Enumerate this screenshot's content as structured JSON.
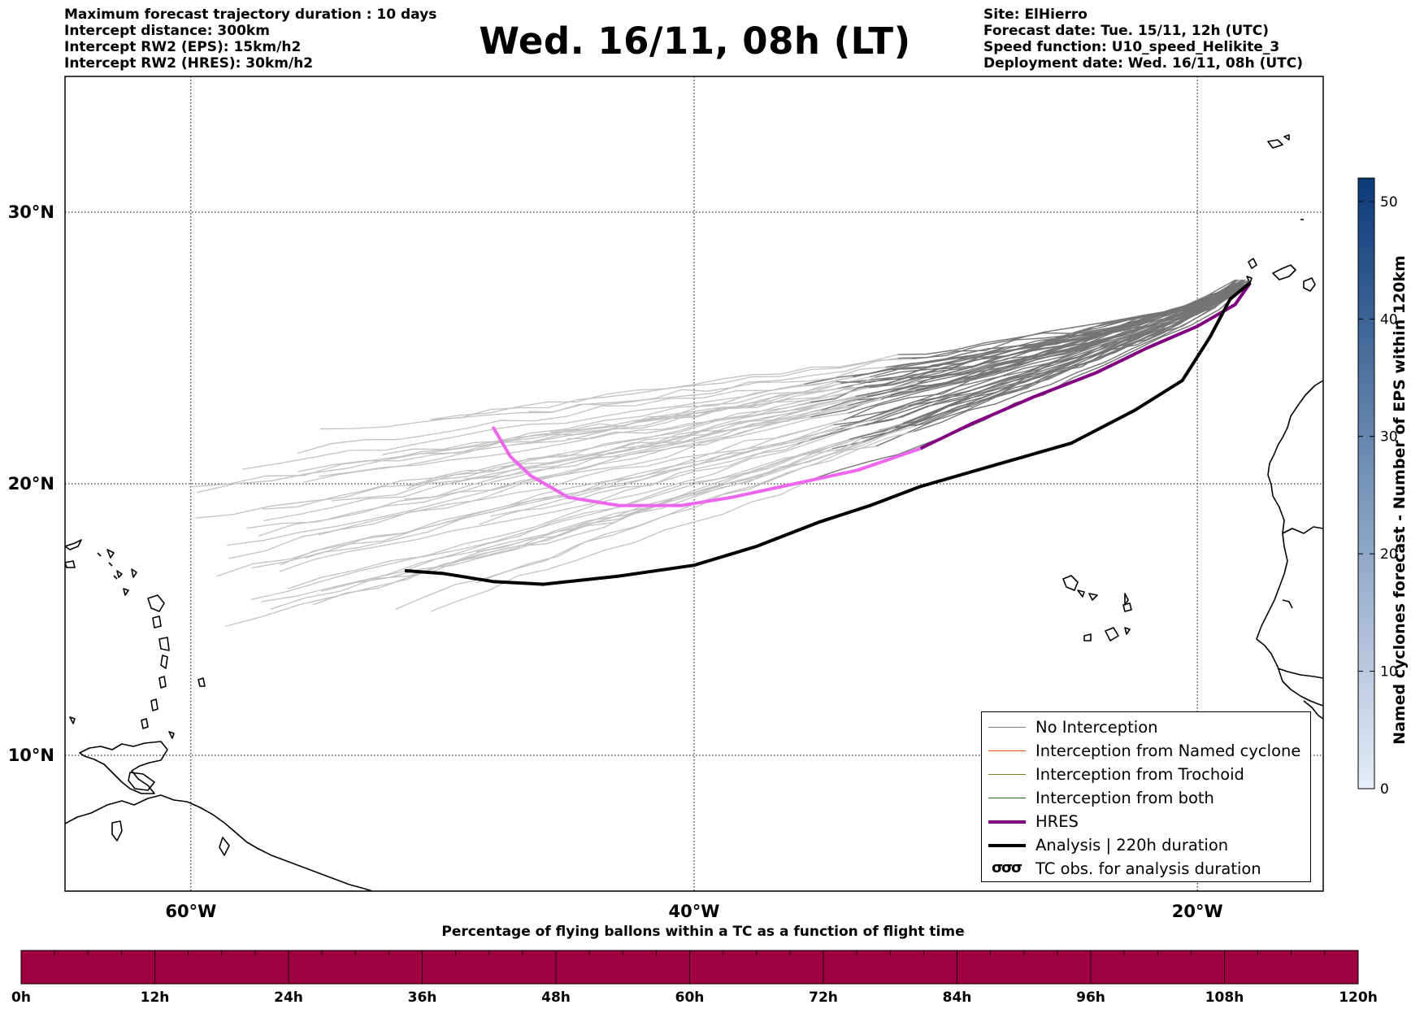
{
  "header": {
    "left_lines": [
      "Maximum forecast trajectory duration : 10 days",
      "Intercept distance: 300km",
      "Intercept RW2 (EPS):  15km/h2",
      "Intercept RW2 (HRES): 30km/h2"
    ],
    "title": "Wed. 16/11, 08h (LT)",
    "right_lines": [
      "Site: ElHierro",
      "Forecast date: Tue. 15/11, 12h (UTC)",
      "Speed function: U10_speed_Helikite_3",
      "Deployment date: Wed. 16/11, 08h (UTC)"
    ]
  },
  "map": {
    "lon_range": [
      -65,
      -15
    ],
    "lat_range": [
      5,
      35
    ],
    "lon_ticks": [
      {
        "value": -60,
        "label": "60°W"
      },
      {
        "value": -40,
        "label": "40°W"
      },
      {
        "value": -20,
        "label": "20°W"
      }
    ],
    "lat_ticks": [
      {
        "value": 30,
        "label": "30°N"
      },
      {
        "value": 20,
        "label": "20°N"
      },
      {
        "value": 10,
        "label": "10°N"
      }
    ],
    "gridlines": "dotted",
    "hres_track": {
      "color_early": "#800080",
      "color_late": "#ee66ee",
      "points": [
        [
          -17.9,
          27.4
        ],
        [
          -18.5,
          26.6
        ],
        [
          -20,
          25.8
        ],
        [
          -22,
          25
        ],
        [
          -24,
          24.1
        ],
        [
          -26.5,
          23.2
        ],
        [
          -29,
          22.2
        ],
        [
          -31,
          21.3
        ],
        [
          -33.5,
          20.5
        ],
        [
          -36,
          20
        ],
        [
          -38.5,
          19.5
        ],
        [
          -40.5,
          19.2
        ],
        [
          -43,
          19.2
        ],
        [
          -45,
          19.5
        ],
        [
          -46.5,
          20.3
        ],
        [
          -47.3,
          21
        ],
        [
          -48,
          22.1
        ]
      ],
      "split_index": 7
    },
    "analysis_track": {
      "color": "#000000",
      "points": [
        [
          -17.9,
          27.4
        ],
        [
          -18.7,
          26.8
        ],
        [
          -19.5,
          25.4
        ],
        [
          -20.6,
          23.8
        ],
        [
          -22.5,
          22.7
        ],
        [
          -25,
          21.5
        ],
        [
          -28,
          20.7
        ],
        [
          -31,
          19.9
        ],
        [
          -33,
          19.2
        ],
        [
          -35,
          18.6
        ],
        [
          -37.5,
          17.7
        ],
        [
          -40,
          17
        ],
        [
          -43,
          16.6
        ],
        [
          -46,
          16.3
        ],
        [
          -48,
          16.4
        ],
        [
          -50,
          16.7
        ],
        [
          -51.5,
          16.8
        ]
      ]
    },
    "eps_colors": {
      "near": "#6b6b6b",
      "far": "#cccccc"
    }
  },
  "legend": {
    "items": [
      {
        "label": "No Interception",
        "color": "#808080",
        "width": 1.5,
        "symbol": "line"
      },
      {
        "label": "Interception from Named cyclone",
        "color": "#e8541e",
        "width": 1.5,
        "symbol": "line"
      },
      {
        "label": "Interception from Trochoid",
        "color": "#7a7a1a",
        "width": 1.5,
        "symbol": "line"
      },
      {
        "label": "Interception from both",
        "color": "#1e7a1e",
        "width": 1.5,
        "symbol": "line"
      },
      {
        "label": "HRES",
        "color": "#800080",
        "width": 4,
        "symbol": "line"
      },
      {
        "label": "Analysis | 220h duration",
        "color": "#000000",
        "width": 4,
        "symbol": "line"
      },
      {
        "label": "TC obs. for analysis duration",
        "color": "#000000",
        "symbol": "cyclones",
        "glyphs": "σσσ"
      }
    ]
  },
  "colorbar": {
    "label": "Named cyclones forecast - Number of EPS within 120km",
    "range": [
      0,
      52
    ],
    "ticks": [
      0,
      10,
      20,
      30,
      40,
      50
    ],
    "color_low": "#e4edf8",
    "color_high": "#0a3a78"
  },
  "percentage_bar": {
    "title": "Percentage of flying ballons within a TC as a function of flight time",
    "fill_color": "#9e0040",
    "ticks": [
      "0h",
      "12h",
      "24h",
      "36h",
      "48h",
      "60h",
      "72h",
      "84h",
      "96h",
      "108h",
      "120h"
    ]
  }
}
